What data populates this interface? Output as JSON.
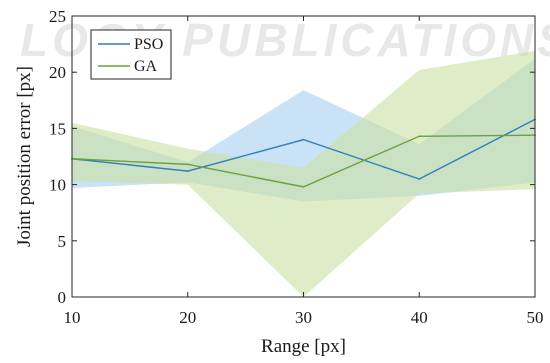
{
  "watermark": "LOGY PUBLICATIONS",
  "chart_data": {
    "type": "line",
    "title": "",
    "xlabel": "Range [px]",
    "ylabel": "Joint position error [px]",
    "xlim": [
      10,
      50
    ],
    "ylim": [
      0,
      25
    ],
    "x_ticks": [
      "10",
      "20",
      "30",
      "40",
      "50"
    ],
    "y_ticks": [
      "0",
      "5",
      "10",
      "15",
      "20",
      "25"
    ],
    "grid": false,
    "legend_position": "top-left",
    "x": [
      10,
      20,
      30,
      40,
      50
    ],
    "series": [
      {
        "name": "PSO",
        "color": "#2f7fc1",
        "band_color": "#a9d1ef",
        "values": [
          12.3,
          11.2,
          14.0,
          10.5,
          15.8
        ],
        "band_upper": [
          15.2,
          12.0,
          18.4,
          13.6,
          21.2
        ],
        "band_lower": [
          9.7,
          10.2,
          8.5,
          9.0,
          10.2
        ]
      },
      {
        "name": "GA",
        "color": "#6aa23a",
        "band_color": "#cbe0a6",
        "values": [
          12.3,
          11.8,
          9.8,
          14.3,
          14.4
        ],
        "band_upper": [
          15.5,
          13.2,
          11.5,
          20.2,
          21.9
        ],
        "band_lower": [
          10.3,
          10.0,
          0.0,
          9.2,
          9.6
        ]
      }
    ]
  }
}
